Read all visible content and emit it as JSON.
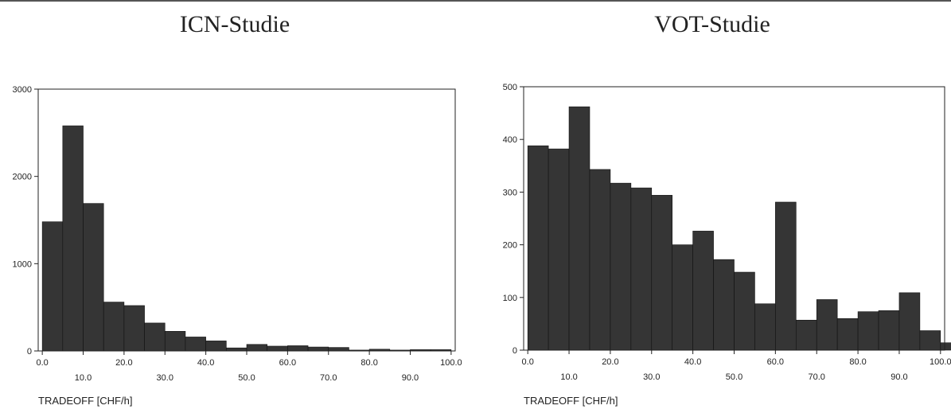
{
  "chart_data": [
    {
      "type": "bar",
      "title": "ICN-Studie",
      "xlabel": "TRADEOFF [CHF/h]",
      "ylabel": "",
      "bin_width": 5,
      "x": [
        0,
        5,
        10,
        15,
        20,
        25,
        30,
        35,
        40,
        45,
        50,
        55,
        60,
        65,
        70,
        75,
        80,
        85,
        90,
        95
      ],
      "values": [
        1480,
        2580,
        1690,
        560,
        520,
        320,
        225,
        160,
        115,
        35,
        75,
        55,
        60,
        45,
        40,
        10,
        20,
        10,
        15,
        15
      ],
      "xlim": [
        -1,
        101
      ],
      "ylim": [
        0,
        3000
      ],
      "yticks": [
        0,
        1000,
        2000,
        3000
      ],
      "xticks_upper": [
        "0.0",
        "20.0",
        "40.0",
        "60.0",
        "80.0",
        "100.0"
      ],
      "xticks_lower": [
        "10.0",
        "30.0",
        "50.0",
        "70.0",
        "90.0"
      ],
      "grid": false,
      "bar_color": "#353535"
    },
    {
      "type": "bar",
      "title": "VOT-Studie",
      "xlabel": "TRADEOFF [CHF/h]",
      "ylabel": "",
      "bin_width": 5,
      "x": [
        0,
        5,
        10,
        15,
        20,
        25,
        30,
        35,
        40,
        45,
        50,
        55,
        60,
        65,
        70,
        75,
        80,
        85,
        90,
        95,
        100
      ],
      "values": [
        388,
        382,
        462,
        343,
        317,
        308,
        294,
        200,
        226,
        172,
        148,
        88,
        281,
        57,
        96,
        60,
        73,
        75,
        109,
        37,
        14
      ],
      "xlim": [
        -1,
        101
      ],
      "ylim": [
        0,
        500
      ],
      "yticks": [
        0,
        100,
        200,
        300,
        400,
        500
      ],
      "xticks_upper": [
        "0.0",
        "20.0",
        "40.0",
        "60.0",
        "80.0",
        "100.0"
      ],
      "xticks_lower": [
        "10.0",
        "30.0",
        "50.0",
        "70.0",
        "90.0"
      ],
      "grid": false,
      "bar_color": "#353535"
    }
  ]
}
